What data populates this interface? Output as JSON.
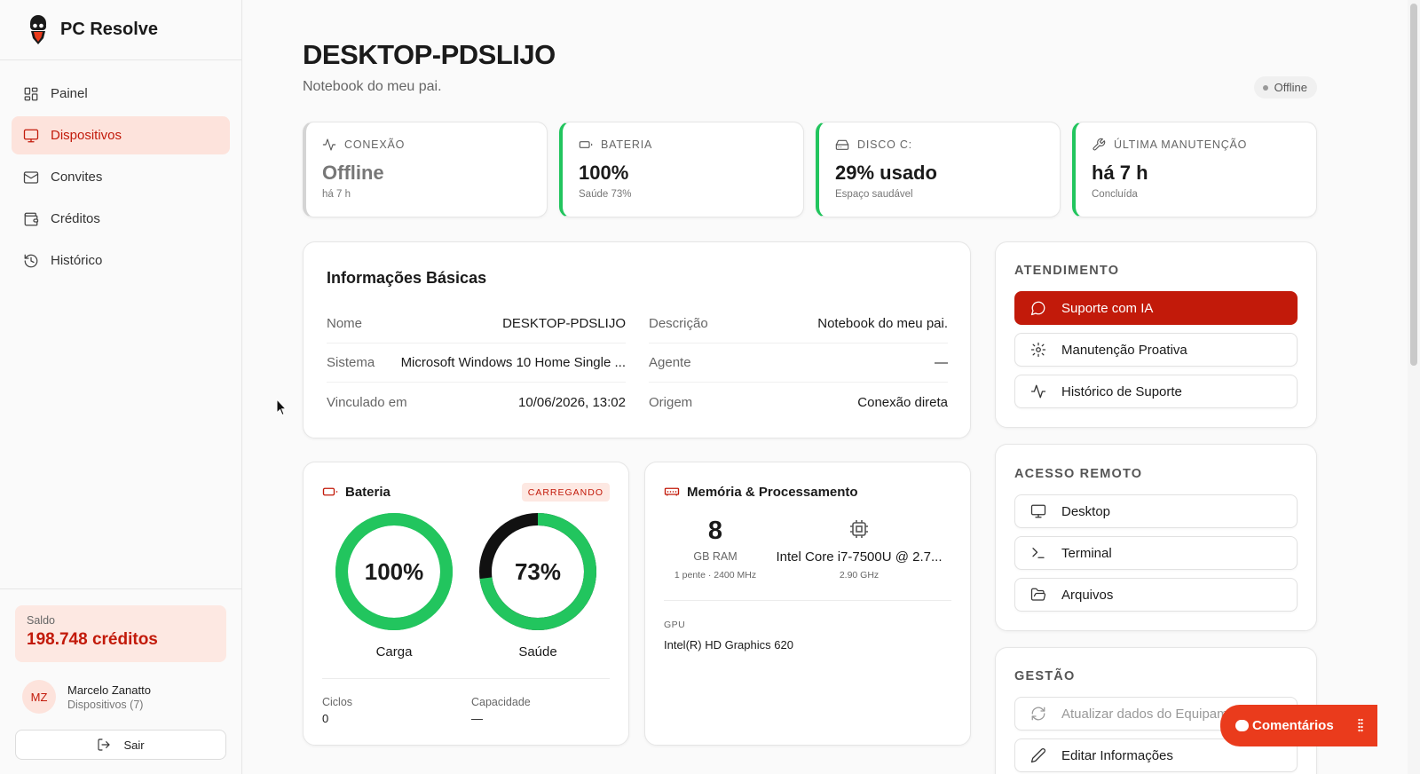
{
  "brand": {
    "name": "PC Resolve"
  },
  "sidebar": {
    "items": [
      {
        "label": "Painel",
        "icon": "grid-icon",
        "active": false
      },
      {
        "label": "Dispositivos",
        "icon": "monitor-icon",
        "active": true
      },
      {
        "label": "Convites",
        "icon": "mail-icon",
        "active": false
      },
      {
        "label": "Créditos",
        "icon": "wallet-icon",
        "active": false
      },
      {
        "label": "Histórico",
        "icon": "history-icon",
        "active": false
      }
    ],
    "saldo_label": "Saldo",
    "saldo_value": "198.748 créditos",
    "user": {
      "initials": "MZ",
      "name": "Marcelo Zanatto",
      "sub": "Dispositivos (7)"
    },
    "logout_label": "Sair"
  },
  "device": {
    "title": "DESKTOP-PDSLIJO",
    "subtitle": "Notebook do meu pai.",
    "status": "Offline"
  },
  "stats": [
    {
      "label": "CONEXÃO",
      "value": "Offline",
      "sub": "há 7 h",
      "icon": "activity-icon"
    },
    {
      "label": "BATERIA",
      "value": "100%",
      "sub": "Saúde 73%",
      "icon": "battery-icon"
    },
    {
      "label": "DISCO C:",
      "value": "29% usado",
      "sub": "Espaço saudável",
      "icon": "hard-drive-icon"
    },
    {
      "label": "ÚLTIMA MANUTENÇÃO",
      "value": "há 7 h",
      "sub": "Concluída",
      "icon": "wrench-icon"
    }
  ],
  "info": {
    "title": "Informações Básicas",
    "rows": [
      {
        "label": "Nome",
        "value": "DESKTOP-PDSLIJO"
      },
      {
        "label": "Descrição",
        "value": "Notebook do meu pai."
      },
      {
        "label": "Sistema",
        "value": "Microsoft Windows 10 Home Single ..."
      },
      {
        "label": "Agente",
        "value": "—"
      },
      {
        "label": "Vinculado em",
        "value": "10/06/2026, 13:02"
      },
      {
        "label": "Origem",
        "value": "Conexão direta"
      }
    ]
  },
  "battery": {
    "title": "Bateria",
    "badge": "CARREGANDO",
    "charge": {
      "value": 100,
      "text": "100%",
      "label": "Carga"
    },
    "health": {
      "value": 73,
      "text": "73%",
      "label": "Saúde"
    },
    "cycles_label": "Ciclos",
    "cycles_value": "0",
    "capacity_label": "Capacidade",
    "capacity_value": "—",
    "colors": {
      "ok": "#22c55e",
      "rest": "#111111"
    }
  },
  "memory": {
    "title": "Memória & Processamento",
    "ram_value": "8",
    "ram_unit": "GB RAM",
    "ram_sub": "1 pente · 2400 MHz",
    "cpu_name": "Intel Core i7-7500U @ 2.7...",
    "cpu_sub": "2.90 GHz",
    "gpu_label": "GPU",
    "gpu_value": "Intel(R) HD Graphics 620"
  },
  "atendimento": {
    "title": "ATENDIMENTO",
    "buttons": [
      {
        "label": "Suporte com IA",
        "icon": "chat-icon"
      },
      {
        "label": "Manutenção Proativa",
        "icon": "gear-icon"
      },
      {
        "label": "Histórico de Suporte",
        "icon": "activity-icon"
      }
    ]
  },
  "remoto": {
    "title": "ACESSO REMOTO",
    "buttons": [
      {
        "label": "Desktop",
        "icon": "monitor-icon"
      },
      {
        "label": "Terminal",
        "icon": "terminal-icon"
      },
      {
        "label": "Arquivos",
        "icon": "folder-icon"
      }
    ]
  },
  "gestao": {
    "title": "GESTÃO",
    "buttons": [
      {
        "label": "Atualizar dados do Equipamento",
        "icon": "refresh-icon"
      },
      {
        "label": "Editar Informações",
        "icon": "pencil-icon"
      }
    ]
  },
  "feedback": {
    "label": "Comentários"
  },
  "theme": {
    "accent": "#c21a0a",
    "success": "#22c55e",
    "comments_bg": "#ea3b1c"
  }
}
